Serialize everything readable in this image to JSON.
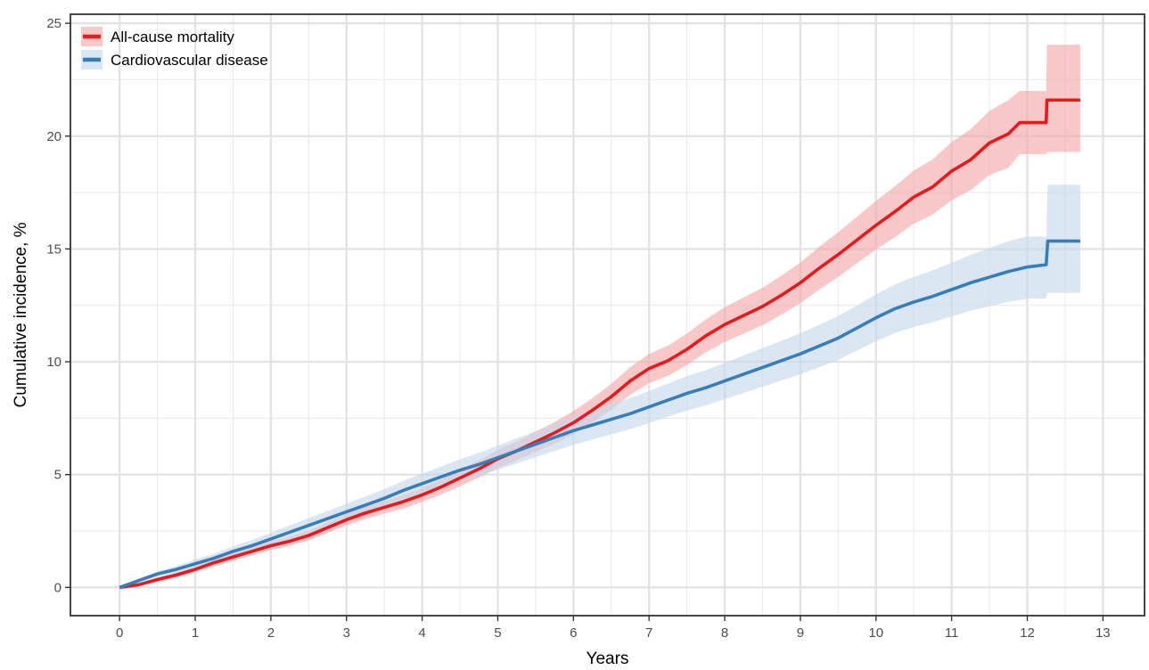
{
  "chart_data": {
    "type": "line",
    "xlabel": "Years",
    "ylabel": "Cumulative incidence, %",
    "xlim": [
      -0.65,
      13.55
    ],
    "ylim": [
      -1.25,
      25.4
    ],
    "xticks": [
      0,
      1,
      2,
      3,
      4,
      5,
      6,
      7,
      8,
      9,
      10,
      11,
      12,
      13
    ],
    "yticks": [
      0,
      5,
      10,
      15,
      20,
      25
    ],
    "grid": true,
    "legend_position": "top-left",
    "series": [
      {
        "name": "All-cause mortality",
        "color": "#e41a1c",
        "band_color": "#f4a9ab",
        "x": [
          0,
          0.25,
          0.5,
          0.75,
          1.0,
          1.25,
          1.5,
          1.75,
          2.0,
          2.25,
          2.5,
          2.75,
          3.0,
          3.25,
          3.5,
          3.75,
          4.0,
          4.25,
          4.5,
          4.75,
          5.0,
          5.25,
          5.5,
          5.75,
          6.0,
          6.25,
          6.5,
          6.75,
          7.0,
          7.25,
          7.5,
          7.75,
          8.0,
          8.25,
          8.5,
          8.75,
          9.0,
          9.25,
          9.5,
          9.75,
          10.0,
          10.25,
          10.5,
          10.75,
          11.0,
          11.25,
          11.5,
          11.75,
          11.9,
          12.25,
          12.26,
          12.7
        ],
        "y": [
          0,
          0.12,
          0.35,
          0.55,
          0.8,
          1.1,
          1.35,
          1.6,
          1.85,
          2.05,
          2.3,
          2.65,
          3.0,
          3.3,
          3.55,
          3.8,
          4.1,
          4.45,
          4.85,
          5.25,
          5.7,
          6.05,
          6.45,
          6.85,
          7.3,
          7.85,
          8.45,
          9.15,
          9.7,
          10.05,
          10.55,
          11.15,
          11.65,
          12.05,
          12.45,
          12.95,
          13.5,
          14.15,
          14.75,
          15.4,
          16.05,
          16.65,
          17.3,
          17.75,
          18.45,
          18.95,
          19.7,
          20.1,
          20.6,
          20.6,
          21.6,
          21.6
        ],
        "lower": [
          0,
          0.05,
          0.25,
          0.43,
          0.67,
          0.95,
          1.18,
          1.43,
          1.66,
          1.85,
          2.08,
          2.42,
          2.75,
          3.03,
          3.27,
          3.5,
          3.79,
          4.12,
          4.49,
          4.87,
          5.3,
          5.63,
          6.0,
          6.37,
          6.78,
          7.31,
          7.88,
          8.54,
          9.05,
          9.38,
          9.85,
          10.42,
          10.88,
          11.25,
          11.62,
          12.09,
          12.6,
          13.2,
          13.76,
          14.37,
          14.97,
          15.52,
          16.12,
          16.53,
          17.16,
          17.6,
          18.28,
          18.6,
          19.2,
          19.2,
          19.3,
          19.3
        ],
        "upper": [
          0,
          0.2,
          0.45,
          0.67,
          0.93,
          1.25,
          1.52,
          1.77,
          2.04,
          2.25,
          2.52,
          2.88,
          3.25,
          3.57,
          3.83,
          4.1,
          4.41,
          4.78,
          5.21,
          5.63,
          6.1,
          6.47,
          6.9,
          7.33,
          7.82,
          8.39,
          9.02,
          9.76,
          10.35,
          10.72,
          11.25,
          11.88,
          12.42,
          12.85,
          13.28,
          13.81,
          14.4,
          15.1,
          15.74,
          16.43,
          17.13,
          17.78,
          18.48,
          18.97,
          19.74,
          20.3,
          21.12,
          21.6,
          22.0,
          22.0,
          24.05,
          24.05
        ]
      },
      {
        "name": "Cardiovascular disease",
        "color": "#377eb8",
        "band_color": "#c6d9ea",
        "x": [
          0,
          0.25,
          0.5,
          0.75,
          1.0,
          1.25,
          1.5,
          1.75,
          2.0,
          2.25,
          2.5,
          2.75,
          3.0,
          3.25,
          3.5,
          3.75,
          4.0,
          4.25,
          4.5,
          4.75,
          5.0,
          5.25,
          5.5,
          5.75,
          6.0,
          6.25,
          6.5,
          6.75,
          7.0,
          7.25,
          7.5,
          7.75,
          8.0,
          8.25,
          8.5,
          8.75,
          9.0,
          9.25,
          9.5,
          9.75,
          10.0,
          10.25,
          10.5,
          10.75,
          11.0,
          11.25,
          11.5,
          11.75,
          12.0,
          12.25,
          12.27,
          12.7
        ],
        "y": [
          0,
          0.3,
          0.6,
          0.8,
          1.05,
          1.3,
          1.6,
          1.85,
          2.15,
          2.45,
          2.75,
          3.05,
          3.35,
          3.65,
          3.95,
          4.3,
          4.6,
          4.9,
          5.2,
          5.45,
          5.75,
          6.05,
          6.35,
          6.65,
          6.95,
          7.2,
          7.45,
          7.7,
          8.0,
          8.3,
          8.6,
          8.85,
          9.15,
          9.45,
          9.75,
          10.05,
          10.35,
          10.7,
          11.05,
          11.5,
          11.95,
          12.35,
          12.65,
          12.9,
          13.2,
          13.5,
          13.75,
          14.0,
          14.2,
          14.3,
          15.35,
          15.35
        ],
        "lower": [
          0,
          0.22,
          0.48,
          0.65,
          0.87,
          1.1,
          1.38,
          1.6,
          1.88,
          2.15,
          2.43,
          2.71,
          2.99,
          3.27,
          3.55,
          3.88,
          4.16,
          4.44,
          4.72,
          4.94,
          5.22,
          5.49,
          5.77,
          6.05,
          6.32,
          6.55,
          6.78,
          7.01,
          7.29,
          7.57,
          7.84,
          8.07,
          8.35,
          8.62,
          8.89,
          9.17,
          9.44,
          9.76,
          10.08,
          10.5,
          10.91,
          11.27,
          11.54,
          11.75,
          12.01,
          12.26,
          12.46,
          12.65,
          12.8,
          12.8,
          13.05,
          13.05
        ],
        "upper": [
          0,
          0.38,
          0.72,
          0.95,
          1.23,
          1.5,
          1.82,
          2.1,
          2.42,
          2.75,
          3.07,
          3.39,
          3.71,
          4.03,
          4.35,
          4.72,
          5.04,
          5.36,
          5.68,
          5.96,
          6.28,
          6.61,
          6.93,
          7.25,
          7.58,
          7.85,
          8.12,
          8.39,
          8.71,
          9.03,
          9.36,
          9.63,
          9.95,
          10.28,
          10.61,
          10.93,
          11.26,
          11.64,
          12.02,
          12.5,
          12.99,
          13.43,
          13.76,
          14.05,
          14.39,
          14.74,
          15.04,
          15.35,
          15.55,
          15.55,
          17.85,
          17.85
        ]
      }
    ]
  }
}
